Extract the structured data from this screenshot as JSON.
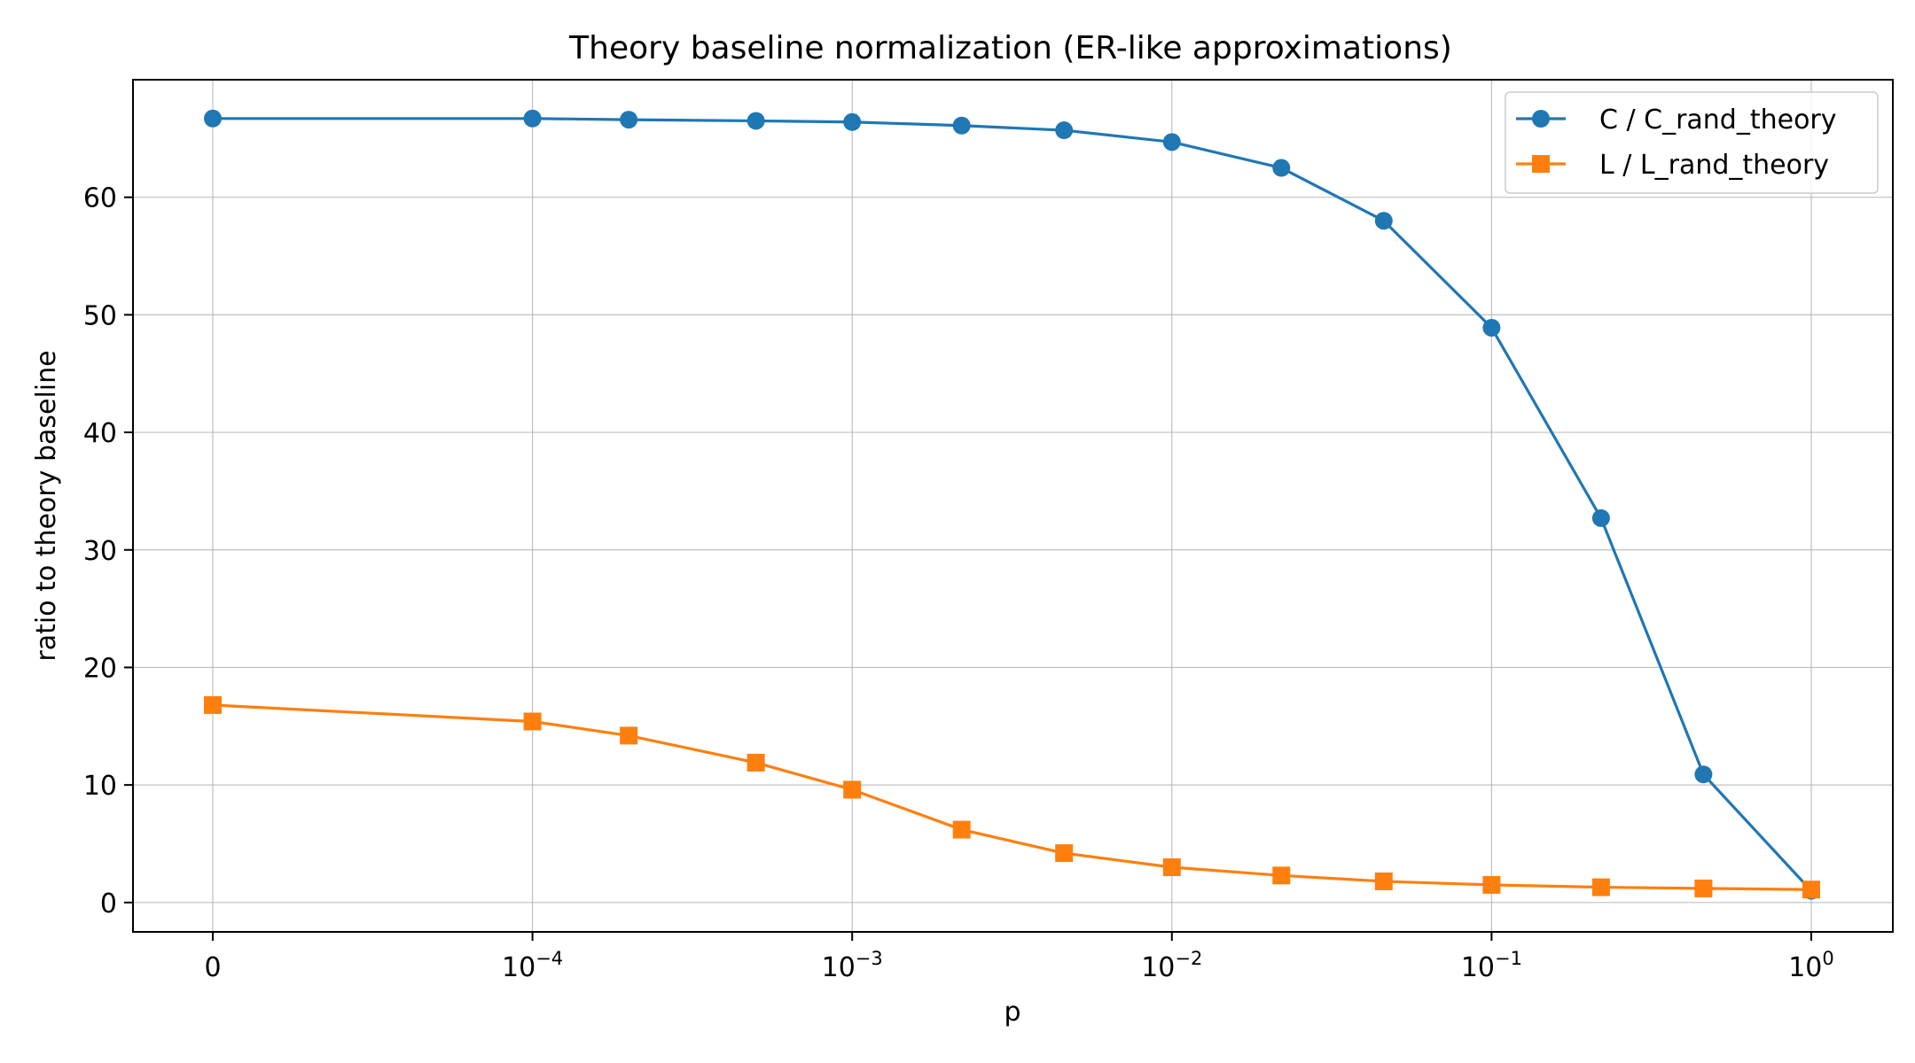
{
  "chart_data": {
    "type": "line",
    "title": "Theory baseline normalization (ER-like approximations)",
    "xlabel": "p",
    "ylabel": "ratio to theory baseline",
    "x_scale": "symlog",
    "x_ticks": [
      {
        "base": "0",
        "exp": ""
      },
      {
        "base": "10",
        "exp": "−4"
      },
      {
        "base": "10",
        "exp": "−3"
      },
      {
        "base": "10",
        "exp": "−2"
      },
      {
        "base": "10",
        "exp": "−1"
      },
      {
        "base": "10",
        "exp": "0"
      }
    ],
    "y_ticks": [
      "0",
      "10",
      "20",
      "30",
      "40",
      "50",
      "60"
    ],
    "ylim": [
      -2.5,
      70
    ],
    "grid": true,
    "legend_position": "top-right",
    "x": [
      0,
      0.0001,
      0.0002,
      0.0005,
      0.001,
      0.0022,
      0.0046,
      0.01,
      0.022,
      0.046,
      0.1,
      0.22,
      0.46,
      1.0
    ],
    "series": [
      {
        "name": "C / C_rand_theory",
        "color": "#1f77b4",
        "marker": "circle",
        "values": [
          66.7,
          66.7,
          66.6,
          66.5,
          66.4,
          66.1,
          65.7,
          64.7,
          62.5,
          58.0,
          48.9,
          32.7,
          10.9,
          1.0
        ]
      },
      {
        "name": "L / L_rand_theory",
        "color": "#ff7f0e",
        "marker": "square",
        "values": [
          16.8,
          15.4,
          14.2,
          11.9,
          9.6,
          6.2,
          4.2,
          3.0,
          2.3,
          1.8,
          1.5,
          1.3,
          1.2,
          1.1
        ]
      }
    ]
  }
}
